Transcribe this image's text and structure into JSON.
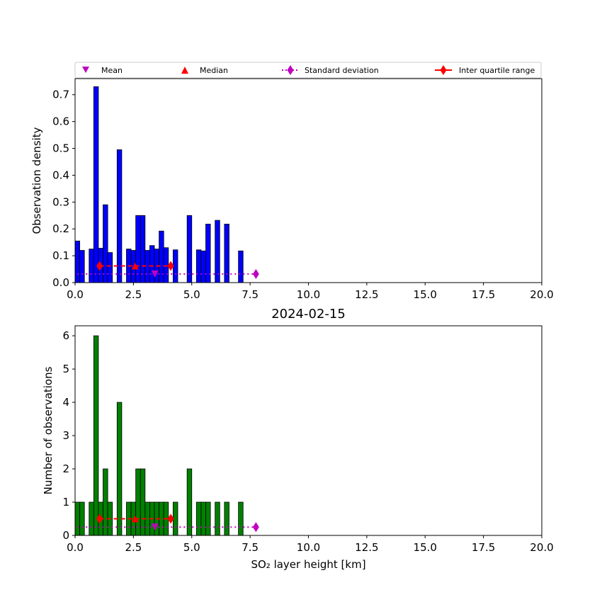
{
  "chart_data": [
    {
      "type": "bar",
      "panel": "top",
      "ylabel": "Observation density",
      "xlim": [
        0,
        20
      ],
      "ylim": [
        0,
        0.76
      ],
      "xticks": [
        "0.0",
        "2.5",
        "5.0",
        "7.5",
        "10.0",
        "12.5",
        "15.0",
        "17.5",
        "20.0"
      ],
      "yticks": [
        "0.0",
        "0.1",
        "0.2",
        "0.3",
        "0.4",
        "0.5",
        "0.6",
        "0.7"
      ],
      "bar_color": "#0000ff",
      "bin_width": 0.2,
      "bins": [
        {
          "x": 0.0,
          "value": 0.155
        },
        {
          "x": 0.2,
          "value": 0.12
        },
        {
          "x": 0.6,
          "value": 0.125
        },
        {
          "x": 0.8,
          "value": 0.73
        },
        {
          "x": 1.0,
          "value": 0.128
        },
        {
          "x": 1.2,
          "value": 0.29
        },
        {
          "x": 1.4,
          "value": 0.112
        },
        {
          "x": 1.8,
          "value": 0.495
        },
        {
          "x": 2.2,
          "value": 0.125
        },
        {
          "x": 2.4,
          "value": 0.12
        },
        {
          "x": 2.6,
          "value": 0.25
        },
        {
          "x": 2.8,
          "value": 0.25
        },
        {
          "x": 3.0,
          "value": 0.12
        },
        {
          "x": 3.2,
          "value": 0.138
        },
        {
          "x": 3.4,
          "value": 0.125
        },
        {
          "x": 3.6,
          "value": 0.192
        },
        {
          "x": 3.8,
          "value": 0.13
        },
        {
          "x": 4.2,
          "value": 0.122
        },
        {
          "x": 4.8,
          "value": 0.25
        },
        {
          "x": 5.2,
          "value": 0.122
        },
        {
          "x": 5.4,
          "value": 0.118
        },
        {
          "x": 5.6,
          "value": 0.218
        },
        {
          "x": 6.0,
          "value": 0.232
        },
        {
          "x": 6.4,
          "value": 0.218
        },
        {
          "x": 7.0,
          "value": 0.118
        }
      ],
      "stats": {
        "y_level": 0.032,
        "iqr_y": 0.062,
        "mean": 3.42,
        "median": 2.57,
        "std_range": [
          0.1,
          7.75
        ],
        "iqr_range": [
          1.05,
          4.1
        ]
      }
    },
    {
      "type": "bar",
      "panel": "bottom",
      "title": "2024-02-15",
      "xlabel": "SO₂ layer height [km]",
      "ylabel": "Number of observations",
      "xlim": [
        0,
        20
      ],
      "ylim": [
        0,
        6.3
      ],
      "xticks": [
        "0.0",
        "2.5",
        "5.0",
        "7.5",
        "10.0",
        "12.5",
        "15.0",
        "17.5",
        "20.0"
      ],
      "yticks": [
        "0",
        "1",
        "2",
        "3",
        "4",
        "5",
        "6"
      ],
      "bar_color": "#008000",
      "bin_width": 0.2,
      "bins": [
        {
          "x": 0.0,
          "value": 1
        },
        {
          "x": 0.2,
          "value": 1
        },
        {
          "x": 0.6,
          "value": 1
        },
        {
          "x": 0.8,
          "value": 6
        },
        {
          "x": 1.0,
          "value": 1
        },
        {
          "x": 1.2,
          "value": 2
        },
        {
          "x": 1.4,
          "value": 1
        },
        {
          "x": 1.8,
          "value": 4
        },
        {
          "x": 2.2,
          "value": 1
        },
        {
          "x": 2.4,
          "value": 1
        },
        {
          "x": 2.6,
          "value": 2
        },
        {
          "x": 2.8,
          "value": 2
        },
        {
          "x": 3.0,
          "value": 1
        },
        {
          "x": 3.2,
          "value": 1
        },
        {
          "x": 3.4,
          "value": 1
        },
        {
          "x": 3.6,
          "value": 1
        },
        {
          "x": 3.8,
          "value": 1
        },
        {
          "x": 4.2,
          "value": 1
        },
        {
          "x": 4.8,
          "value": 2
        },
        {
          "x": 5.2,
          "value": 1
        },
        {
          "x": 5.4,
          "value": 1
        },
        {
          "x": 5.6,
          "value": 1
        },
        {
          "x": 6.0,
          "value": 1
        },
        {
          "x": 6.4,
          "value": 1
        },
        {
          "x": 7.0,
          "value": 1
        }
      ],
      "stats": {
        "y_level": 0.25,
        "iqr_y": 0.5,
        "mean": 3.42,
        "median": 2.57,
        "std_range": [
          0.1,
          7.75
        ],
        "iqr_range": [
          1.05,
          4.1
        ]
      }
    }
  ],
  "legend": {
    "placement": "top",
    "entries": [
      {
        "label": "Mean",
        "marker": "triangle-down",
        "color": "#bf00bf"
      },
      {
        "label": "Median",
        "marker": "triangle-up",
        "color": "#ff0000"
      },
      {
        "label": "Standard deviation",
        "marker": "diamond",
        "color": "#bf00bf",
        "line": "dotted"
      },
      {
        "label": "Inter quartile range",
        "marker": "diamond",
        "color": "#ff0000",
        "line": "solid"
      }
    ]
  }
}
